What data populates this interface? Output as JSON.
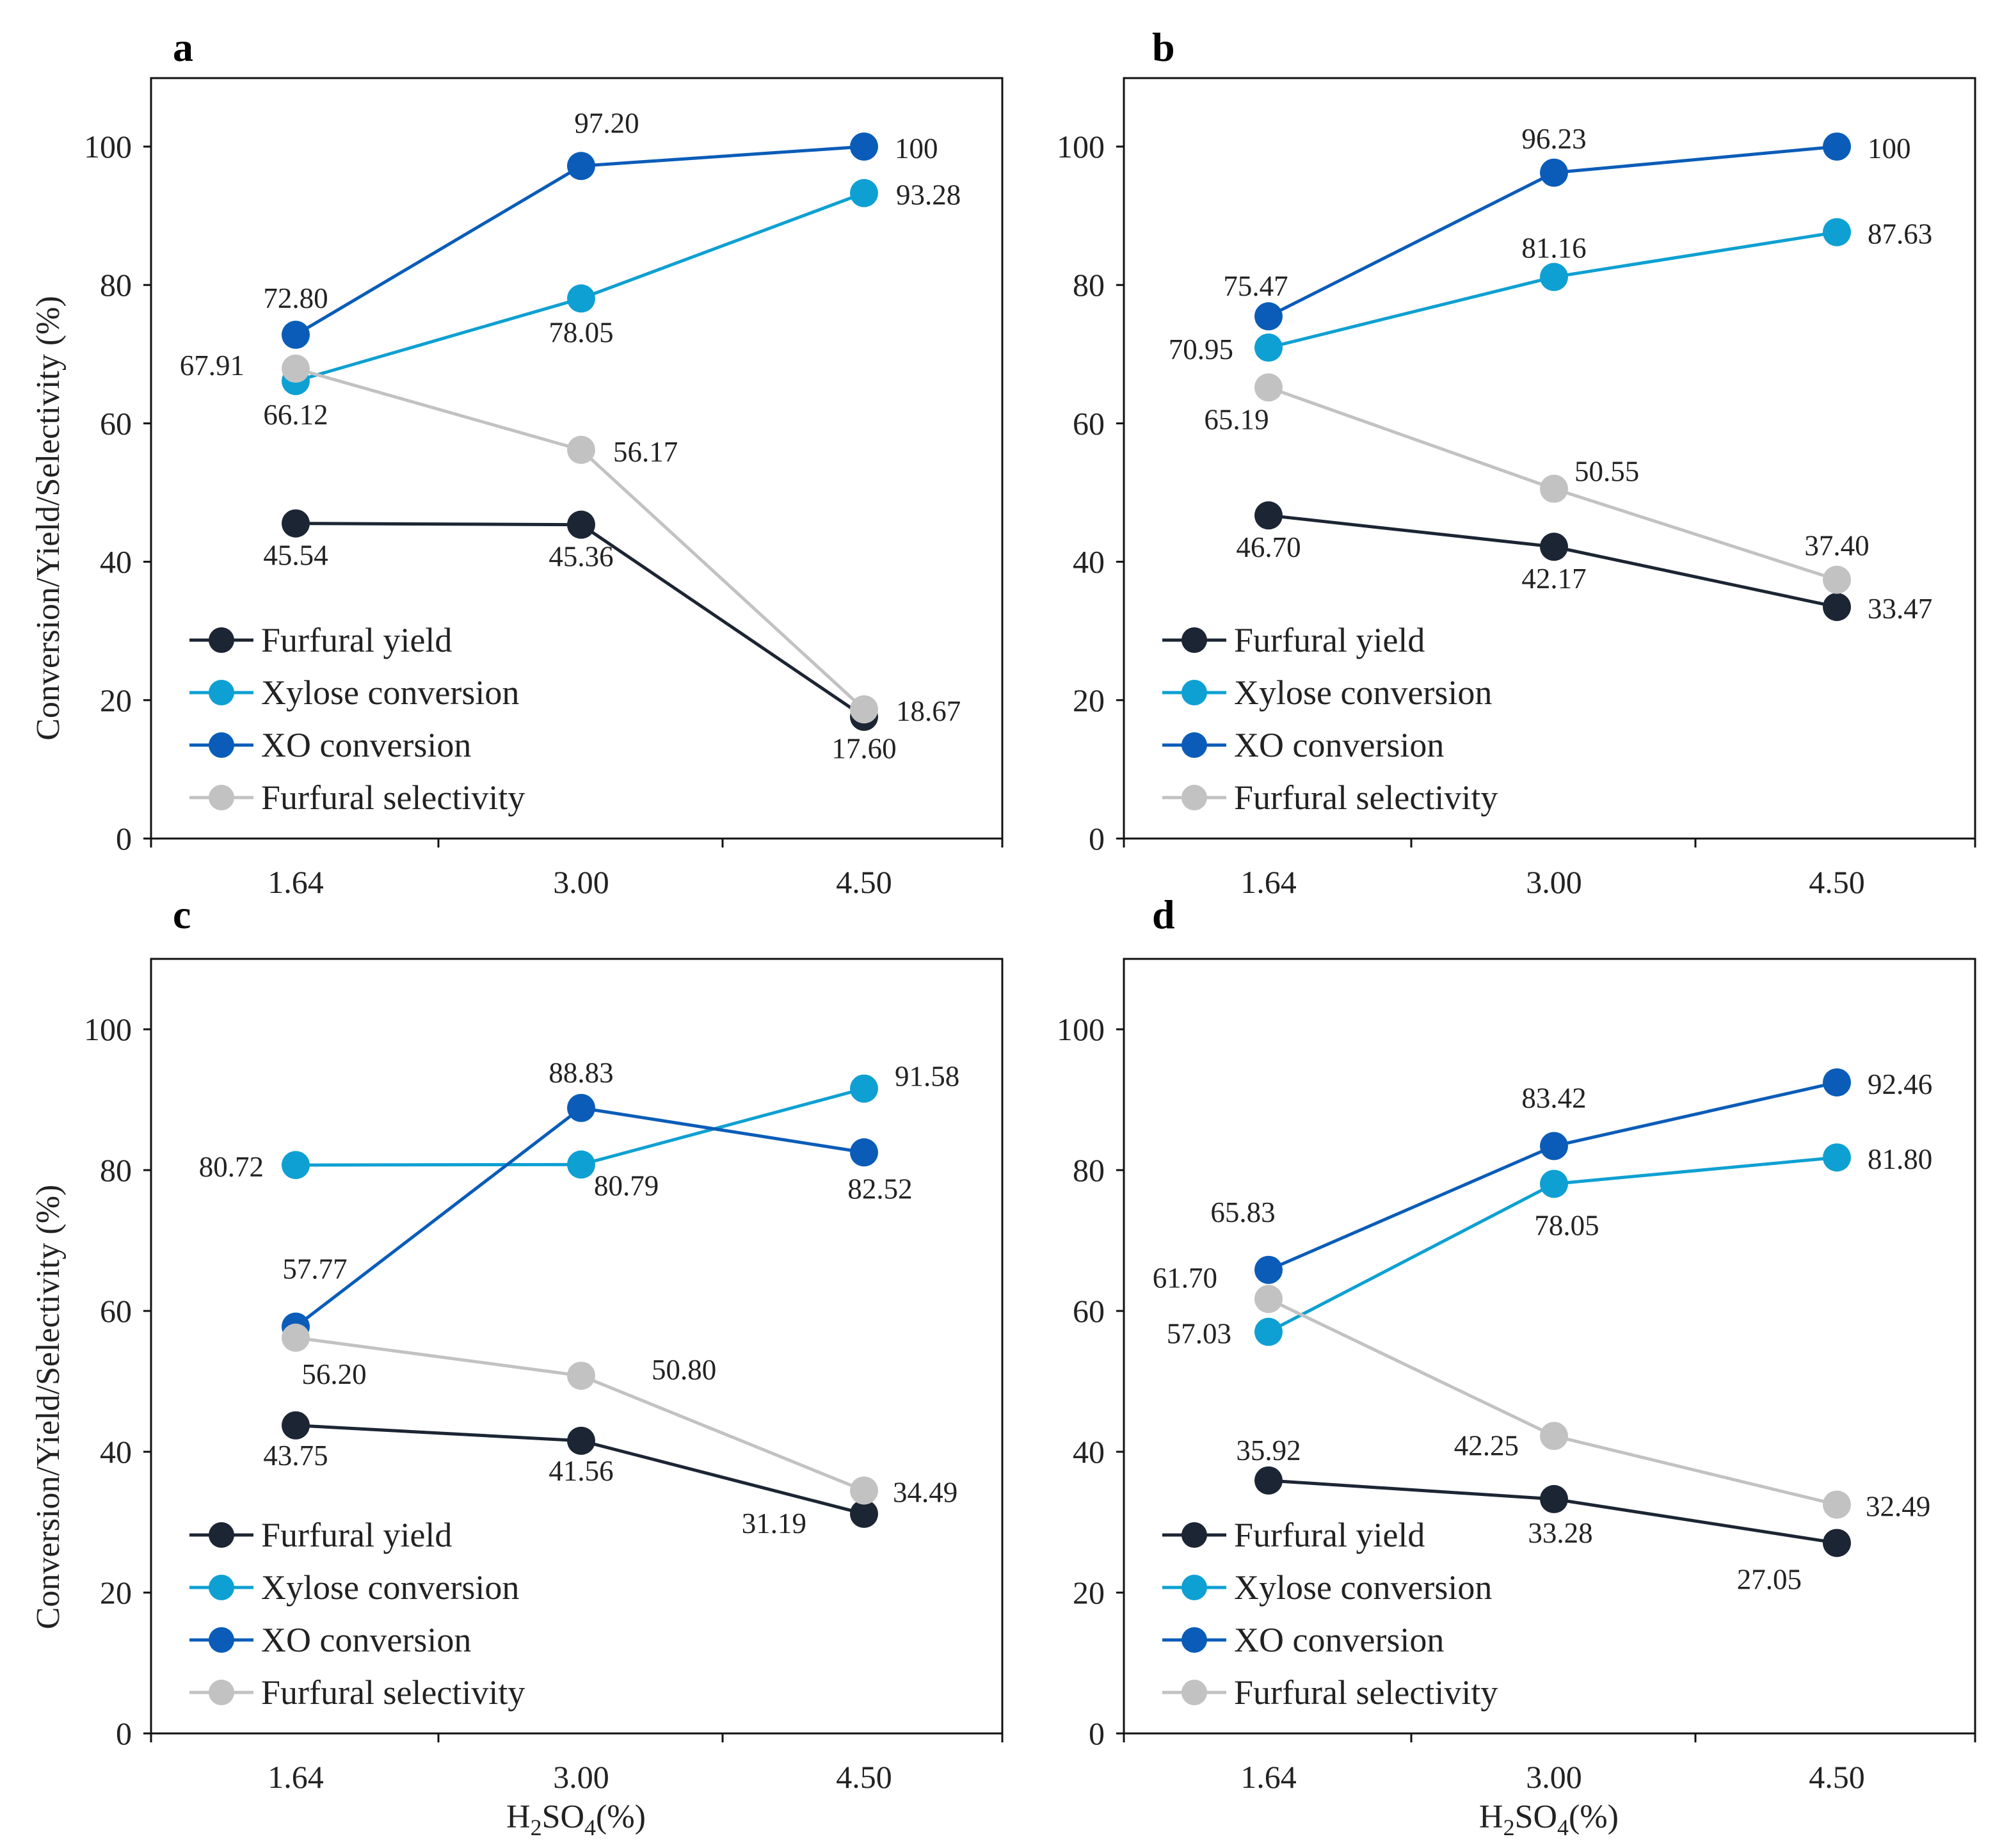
{
  "colors": {
    "furfural_yield": "#1c2533",
    "xylose_conversion": "#0ea0d2",
    "xo_conversion": "#0a5cb8",
    "furfural_selectivity": "#c2c2c2"
  },
  "legend": [
    "Furfural yield",
    "Xylose conversion",
    "XO conversion",
    "Furfural selectivity"
  ],
  "x_axis_title": "H2SO4(%)",
  "x_axis_title_parts": {
    "a": "H",
    "b": "2",
    "c": "SO",
    "d": "4",
    "e": "(%)"
  },
  "chart_data": [
    {
      "panel": "a",
      "type": "line",
      "categories": [
        "1.64",
        "3.00",
        "4.50"
      ],
      "ylabel": "Conversion/Yield/Selectivity  (%)",
      "xlabel": "",
      "ylim": [
        0,
        110
      ],
      "yticks": [
        "0",
        "20",
        "40",
        "60",
        "80",
        "100"
      ],
      "series": [
        {
          "name": "Furfural yield",
          "values": [
            45.54,
            45.36,
            17.6
          ],
          "labels": [
            "45.54",
            "45.36",
            "17.60"
          ]
        },
        {
          "name": "Xylose conversion",
          "values": [
            66.12,
            78.05,
            93.28
          ],
          "labels": [
            "66.12",
            "78.05",
            "93.28"
          ]
        },
        {
          "name": "XO conversion",
          "values": [
            72.8,
            97.2,
            100
          ],
          "labels": [
            "72.80",
            "97.20",
            "100"
          ]
        },
        {
          "name": "Furfural selectivity",
          "values": [
            67.91,
            56.17,
            18.67
          ],
          "labels": [
            "67.91",
            "56.17",
            "18.67"
          ]
        }
      ]
    },
    {
      "panel": "b",
      "type": "line",
      "categories": [
        "1.64",
        "3.00",
        "4.50"
      ],
      "ylabel": "",
      "xlabel": "",
      "ylim": [
        0,
        110
      ],
      "yticks": [
        "0",
        "20",
        "40",
        "60",
        "80",
        "100"
      ],
      "series": [
        {
          "name": "Furfural yield",
          "values": [
            46.7,
            42.17,
            33.47
          ],
          "labels": [
            "46.70",
            "42.17",
            "33.47"
          ]
        },
        {
          "name": "Xylose conversion",
          "values": [
            70.95,
            81.16,
            87.63
          ],
          "labels": [
            "70.95",
            "81.16",
            "87.63"
          ]
        },
        {
          "name": "XO conversion",
          "values": [
            75.47,
            96.23,
            100
          ],
          "labels": [
            "75.47",
            "96.23",
            "100"
          ]
        },
        {
          "name": "Furfural selectivity",
          "values": [
            65.19,
            50.55,
            37.4
          ],
          "labels": [
            "65.19",
            "50.55",
            "37.40"
          ]
        }
      ]
    },
    {
      "panel": "c",
      "type": "line",
      "categories": [
        "1.64",
        "3.00",
        "4.50"
      ],
      "ylabel": "Conversion/Yield/Selectivity  (%)",
      "xlabel": "H2SO4(%)",
      "ylim": [
        0,
        110
      ],
      "yticks": [
        "0",
        "20",
        "40",
        "60",
        "80",
        "100"
      ],
      "series": [
        {
          "name": "Furfural yield",
          "values": [
            43.75,
            41.56,
            31.19
          ],
          "labels": [
            "43.75",
            "41.56",
            "31.19"
          ]
        },
        {
          "name": "Xylose conversion",
          "values": [
            80.72,
            80.79,
            91.58
          ],
          "labels": [
            "80.72",
            "80.79",
            "91.58"
          ]
        },
        {
          "name": "XO conversion",
          "values": [
            57.77,
            88.83,
            82.52
          ],
          "labels": [
            "57.77",
            "88.83",
            "82.52"
          ]
        },
        {
          "name": "Furfural selectivity",
          "values": [
            56.2,
            50.8,
            34.49
          ],
          "labels": [
            "56.20",
            "50.80",
            "34.49"
          ]
        }
      ]
    },
    {
      "panel": "d",
      "type": "line",
      "categories": [
        "1.64",
        "3.00",
        "4.50"
      ],
      "ylabel": "",
      "xlabel": "H2SO4(%)",
      "ylim": [
        0,
        110
      ],
      "yticks": [
        "0",
        "20",
        "40",
        "60",
        "80",
        "100"
      ],
      "series": [
        {
          "name": "Furfural yield",
          "values": [
            35.92,
            33.28,
            27.05
          ],
          "labels": [
            "35.92",
            "33.28",
            "27.05"
          ]
        },
        {
          "name": "Xylose conversion",
          "values": [
            57.03,
            78.05,
            81.8
          ],
          "labels": [
            "57.03",
            "78.05",
            "81.80"
          ]
        },
        {
          "name": "XO conversion",
          "values": [
            65.83,
            83.42,
            92.46
          ],
          "labels": [
            "65.83",
            "83.42",
            "92.46"
          ]
        },
        {
          "name": "Furfural selectivity",
          "values": [
            61.7,
            42.25,
            32.49
          ],
          "labels": [
            "61.70",
            "42.25",
            "32.49"
          ]
        }
      ]
    }
  ]
}
